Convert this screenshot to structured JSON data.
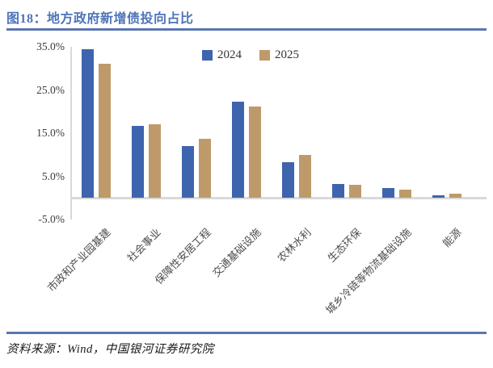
{
  "header": {
    "title": "图18：地方政府新增债投向占比"
  },
  "chart_data": {
    "type": "bar",
    "title": "图18：地方政府新增债投向占比",
    "categories": [
      "市政和产业园基建",
      "社会事业",
      "保障性安居工程",
      "交通基础设施",
      "农林水利",
      "生态环保",
      "城乡冷链等物流基础设施",
      "能源"
    ],
    "series": [
      {
        "name": "2024",
        "color": "#3E64AE",
        "values": [
          34.5,
          16.7,
          12.1,
          22.2,
          8.3,
          3.3,
          2.2,
          0.7
        ]
      },
      {
        "name": "2025",
        "color": "#BE9A6B",
        "values": [
          31.0,
          17.1,
          13.7,
          21.2,
          9.9,
          3.1,
          1.9,
          1.0
        ]
      }
    ],
    "unit": "%",
    "xlabel": "",
    "ylabel": "",
    "ylim": [
      -5,
      35
    ],
    "y_ticks": [
      {
        "label": "35.0%",
        "value": 35
      },
      {
        "label": "25.0%",
        "value": 25
      },
      {
        "label": "15.0%",
        "value": 15
      },
      {
        "label": "5.0%",
        "value": 5
      },
      {
        "label": "-5.0%",
        "value": -5
      }
    ],
    "grid": false,
    "legend_position": "top-center"
  },
  "footer": {
    "source": "资料来源：Wind，中国银河证券研究院"
  },
  "colors": {
    "series_2024": "#3E64AE",
    "series_2025": "#BE9A6B",
    "title_text": "#4E74B9",
    "rule_line": "#5B76AF",
    "axis_line": "#D9D9D9",
    "tick_text": "#3B3B3B",
    "category_text": "#4D4D4D"
  }
}
